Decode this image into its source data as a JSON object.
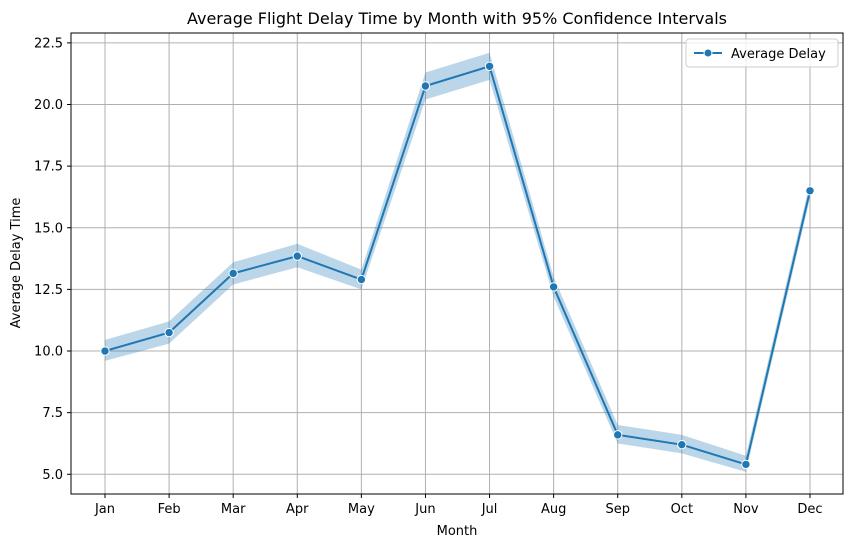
{
  "chart_data": {
    "type": "line",
    "title": "Average Flight Delay Time by Month with 95% Confidence Intervals",
    "xlabel": "Month",
    "ylabel": "Average Delay Time",
    "categories": [
      "Jan",
      "Feb",
      "Mar",
      "Apr",
      "May",
      "Jun",
      "Jul",
      "Aug",
      "Sep",
      "Oct",
      "Nov",
      "Dec"
    ],
    "yticks": [
      5.0,
      7.5,
      10.0,
      12.5,
      15.0,
      17.5,
      20.0,
      22.5
    ],
    "ytick_labels": [
      "5.0",
      "7.5",
      "10.0",
      "12.5",
      "15.0",
      "17.5",
      "20.0",
      "22.5"
    ],
    "ylim": [
      4.2,
      22.9
    ],
    "grid": true,
    "legend_position": "top-right",
    "series": [
      {
        "name": "Average Delay",
        "color": "#1f77b4",
        "values": [
          10.0,
          10.75,
          13.15,
          13.85,
          12.9,
          20.75,
          21.55,
          12.6,
          6.6,
          6.2,
          5.4,
          16.5
        ],
        "ci_lower": [
          9.6,
          10.3,
          12.7,
          13.4,
          12.5,
          20.2,
          21.0,
          12.2,
          6.25,
          5.85,
          5.1,
          16.2
        ],
        "ci_upper": [
          10.45,
          11.2,
          13.6,
          14.35,
          13.3,
          21.3,
          22.1,
          13.0,
          7.0,
          6.6,
          5.75,
          16.85
        ]
      }
    ]
  }
}
